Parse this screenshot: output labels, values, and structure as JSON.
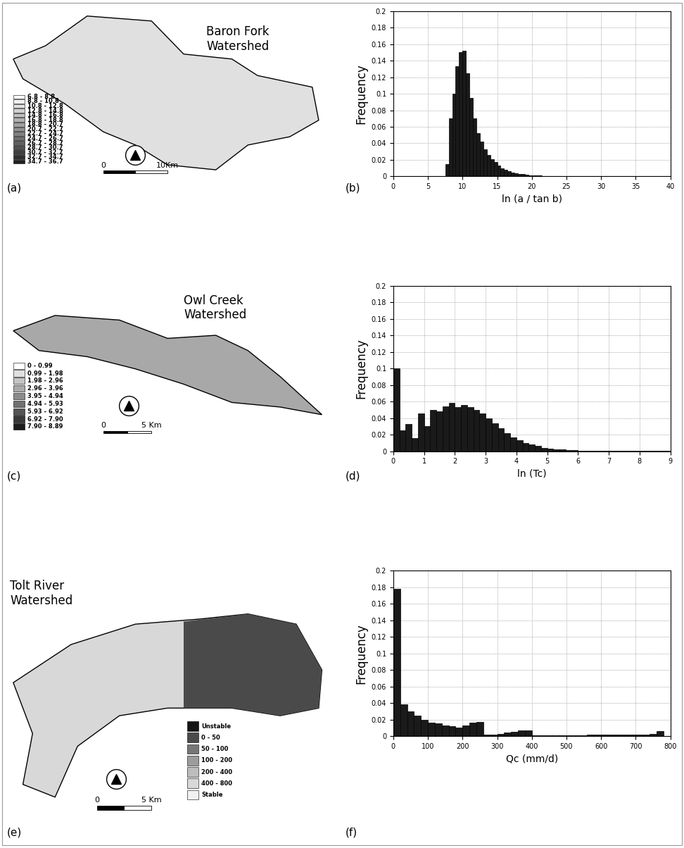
{
  "chart_data": [
    {
      "type": "map",
      "title": "Baron Fork\nWatershed",
      "panel": "(a)",
      "legend_items": [
        {
          "label": "6.8 - 8.8",
          "color": "#ffffff"
        },
        {
          "label": "8.8 - 10.8",
          "color": "#f0f0f0"
        },
        {
          "label": "10.8 - 12.8",
          "color": "#e0e0e0"
        },
        {
          "label": "12.8 - 14.8",
          "color": "#d0d0d0"
        },
        {
          "label": "14.8 - 16.8",
          "color": "#c0c0c0"
        },
        {
          "label": "16.8 - 18.8",
          "color": "#b0b0b0"
        },
        {
          "label": "18.8 - 20.7",
          "color": "#a0a0a0"
        },
        {
          "label": "20.7 - 22.7",
          "color": "#909090"
        },
        {
          "label": "22.7 - 24.7",
          "color": "#808080"
        },
        {
          "label": "24.7 - 26.7",
          "color": "#707070"
        },
        {
          "label": "26.7 - 28.7",
          "color": "#606060"
        },
        {
          "label": "28.7 - 30.7",
          "color": "#505050"
        },
        {
          "label": "30.7 - 32.7",
          "color": "#404040"
        },
        {
          "label": "32.7 - 34.7",
          "color": "#303030"
        },
        {
          "label": "34.7 - 36.7",
          "color": "#202020"
        }
      ],
      "scale_bar": [
        "0",
        "10Km"
      ]
    },
    {
      "type": "histogram",
      "panel": "(b)",
      "xlabel": "ln (a / tan b)",
      "ylabel": "Frequency",
      "color": "#1a1a1a",
      "grid": true,
      "bins": [
        7.5,
        8,
        8.5,
        9,
        9.5,
        10,
        10.5,
        11,
        11.5,
        12,
        12.5,
        13,
        13.5,
        14,
        14.5,
        15,
        15.5,
        16,
        16.5,
        17,
        17.5,
        18,
        18.5,
        19,
        19.5,
        20,
        20.5,
        21,
        21.5,
        22,
        22.5,
        23,
        23.5,
        24,
        24.5,
        25
      ],
      "counts": [
        0.015,
        0.07,
        0.1,
        0.133,
        0.15,
        0.152,
        0.125,
        0.095,
        0.07,
        0.052,
        0.042,
        0.033,
        0.026,
        0.021,
        0.017,
        0.013,
        0.01,
        0.008,
        0.006,
        0.005,
        0.004,
        0.003,
        0.0025,
        0.002,
        0.0015,
        0.0012,
        0.001,
        0.0008,
        0.0006,
        0.0005,
        0.0004,
        0.0003,
        0.0002,
        0.0002,
        0.0001
      ],
      "xlim": [
        0,
        40
      ],
      "xticks": [
        0,
        5,
        10,
        15,
        20,
        25,
        30,
        35,
        40
      ],
      "ylim": [
        0,
        0.2
      ],
      "yticks": [
        0,
        0.02,
        0.04,
        0.06,
        0.08,
        0.1,
        0.12,
        0.14,
        0.16,
        0.18,
        0.2
      ]
    },
    {
      "type": "map",
      "title": "Owl Creek\nWatershed",
      "panel": "(c)",
      "legend_items": [
        {
          "label": "0 - 0.99",
          "color": "#ffffff"
        },
        {
          "label": "0.99 - 1.98",
          "color": "#e0e0e0"
        },
        {
          "label": "1.98 - 2.96",
          "color": "#c4c4c4"
        },
        {
          "label": "2.96 - 3.96",
          "color": "#a8a8a8"
        },
        {
          "label": "3.95 - 4.94",
          "color": "#8c8c8c"
        },
        {
          "label": "4.94 - 5.93",
          "color": "#707070"
        },
        {
          "label": "5.93 - 6.92",
          "color": "#545454"
        },
        {
          "label": "6.92 - 7.90",
          "color": "#383838"
        },
        {
          "label": "7.90 - 8.89",
          "color": "#1c1c1c"
        }
      ],
      "scale_bar": [
        "0",
        "5 Km"
      ]
    },
    {
      "type": "histogram",
      "panel": "(d)",
      "xlabel": "ln (Tc)",
      "ylabel": "Frequency",
      "color": "#1a1a1a",
      "grid": true,
      "bins": [
        0,
        0.2,
        0.4,
        0.6,
        0.8,
        1,
        1.2,
        1.4,
        1.6,
        1.8,
        2,
        2.2,
        2.4,
        2.6,
        2.8,
        3,
        3.2,
        3.4,
        3.6,
        3.8,
        4,
        4.2,
        4.4,
        4.6,
        4.8,
        5,
        5.2,
        5.4,
        5.6,
        5.8,
        6,
        6.2,
        6.4,
        6.6,
        6.8,
        7,
        7.2,
        7.4,
        7.6,
        7.8,
        8,
        8.2,
        8.4,
        8.6,
        8.8,
        9
      ],
      "counts": [
        0.1,
        0.025,
        0.033,
        0.016,
        0.046,
        0.03,
        0.05,
        0.048,
        0.054,
        0.058,
        0.053,
        0.056,
        0.053,
        0.05,
        0.046,
        0.04,
        0.034,
        0.028,
        0.022,
        0.017,
        0.013,
        0.01,
        0.008,
        0.006,
        0.004,
        0.003,
        0.0025,
        0.002,
        0.0015,
        0.001,
        0.0008,
        0.0006,
        0.0005,
        0.0004,
        0.0003,
        0.0003,
        0.0002,
        0.0002,
        0.0001,
        0.0001,
        0.0001,
        0.0001,
        0.0001,
        0.0001,
        0.0001
      ],
      "xlim": [
        0,
        9
      ],
      "xticks": [
        0,
        1,
        2,
        3,
        4,
        5,
        6,
        7,
        8,
        9
      ],
      "ylim": [
        0,
        0.2
      ],
      "yticks": [
        0,
        0.02,
        0.04,
        0.06,
        0.08,
        0.1,
        0.12,
        0.14,
        0.16,
        0.18,
        0.2
      ]
    },
    {
      "type": "map",
      "title": "Tolt River\nWatershed",
      "panel": "(e)",
      "legend_items": [
        {
          "label": "Unstable",
          "color": "#141414"
        },
        {
          "label": "0 - 50",
          "color": "#4a4a4a"
        },
        {
          "label": "50 - 100",
          "color": "#777777"
        },
        {
          "label": "100 - 200",
          "color": "#9c9c9c"
        },
        {
          "label": "200 - 400",
          "color": "#bdbdbd"
        },
        {
          "label": "400 - 800",
          "color": "#d8d8d8"
        },
        {
          "label": "Stable",
          "color": "#f2f2f2"
        }
      ],
      "scale_bar": [
        "0",
        "5 Km"
      ]
    },
    {
      "type": "histogram",
      "panel": "(f)",
      "xlabel": "Qc (mm/d)",
      "ylabel": "Frequency",
      "color": "#1a1a1a",
      "grid": true,
      "bins": [
        0,
        20,
        40,
        60,
        80,
        100,
        120,
        140,
        160,
        180,
        200,
        220,
        240,
        260,
        280,
        300,
        320,
        340,
        360,
        380,
        400,
        420,
        440,
        460,
        480,
        500,
        520,
        540,
        560,
        580,
        600,
        620,
        640,
        660,
        680,
        700,
        720,
        740,
        760,
        780,
        800
      ],
      "counts": [
        0.178,
        0.038,
        0.03,
        0.025,
        0.02,
        0.016,
        0.015,
        0.013,
        0.012,
        0.01,
        0.013,
        0.016,
        0.017,
        0.002,
        0.002,
        0.003,
        0.004,
        0.005,
        0.007,
        0.007,
        0.001,
        0.001,
        0.001,
        0.001,
        0.001,
        0.001,
        0.001,
        0.001,
        0.0015,
        0.0015,
        0.0015,
        0.002,
        0.002,
        0.002,
        0.002,
        0.002,
        0.002,
        0.003,
        0.006,
        0.0
      ],
      "xlim": [
        0,
        800
      ],
      "xticks": [
        0,
        100,
        200,
        300,
        400,
        500,
        600,
        700,
        800
      ],
      "ylim": [
        0,
        0.2
      ],
      "yticks": [
        0,
        0.02,
        0.04,
        0.06,
        0.08,
        0.1,
        0.12,
        0.14,
        0.16,
        0.18,
        0.2
      ]
    }
  ]
}
